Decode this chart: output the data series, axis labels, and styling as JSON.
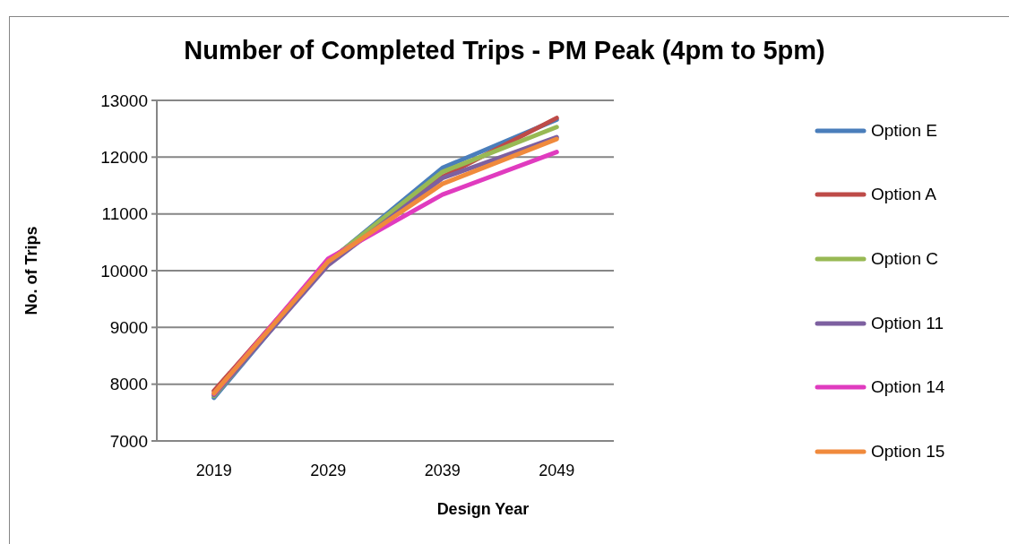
{
  "chart_data": {
    "type": "line",
    "title": "Number of Completed Trips - PM Peak (4pm to 5pm)",
    "xlabel": "Design Year",
    "ylabel": "No. of Trips",
    "categories": [
      "2019",
      "2029",
      "2039",
      "2049"
    ],
    "series": [
      {
        "name": "Option E",
        "color": "#4a7ebb",
        "values": [
          7760,
          10150,
          11810,
          12660
        ]
      },
      {
        "name": "Option A",
        "color": "#be4b48",
        "values": [
          7880,
          10170,
          11650,
          12690
        ]
      },
      {
        "name": "Option C",
        "color": "#98b954",
        "values": [
          7790,
          10160,
          11740,
          12530
        ]
      },
      {
        "name": "Option 11",
        "color": "#7d60a0",
        "values": [
          7810,
          10100,
          11630,
          12350
        ]
      },
      {
        "name": "Option 14",
        "color": "#e03bbf",
        "values": [
          7830,
          10210,
          11340,
          12090
        ]
      },
      {
        "name": "Option 15",
        "color": "#f08a3c",
        "values": [
          7840,
          10160,
          11530,
          12320
        ]
      }
    ],
    "ylim": [
      7000,
      13000
    ],
    "yticks": [
      7000,
      8000,
      9000,
      10000,
      11000,
      12000,
      13000
    ],
    "grid": "y",
    "legend": "right"
  }
}
